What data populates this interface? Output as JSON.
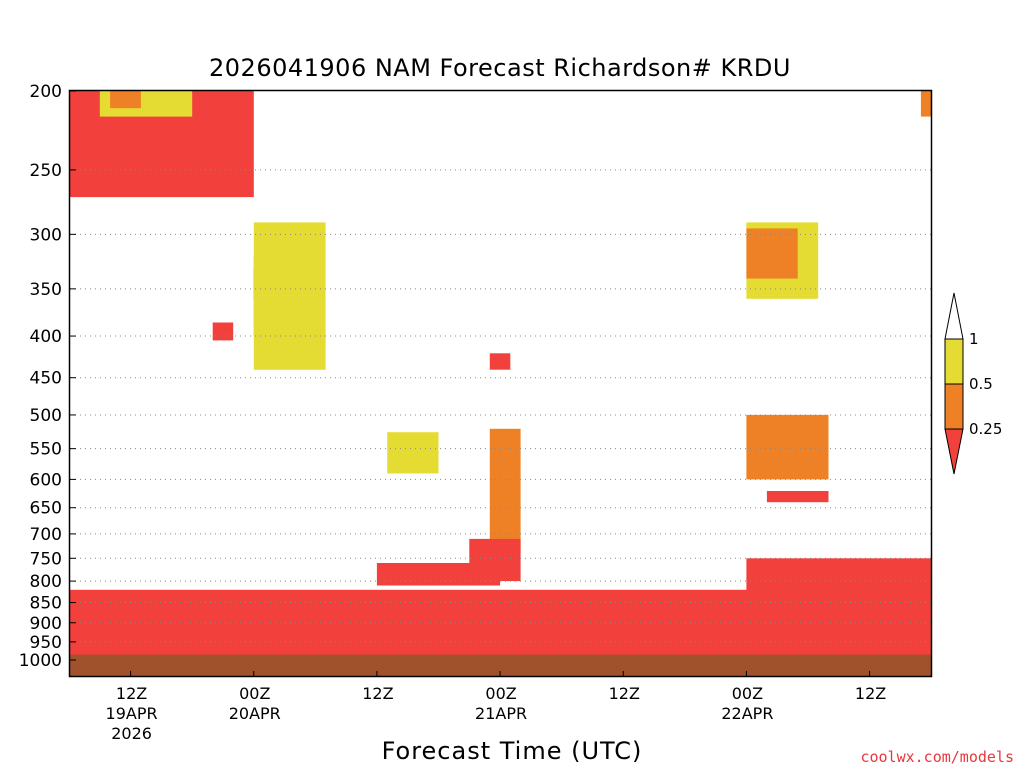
{
  "title": "2026041906 NAM Forecast Richardson# KRDU",
  "x_axis_title": "Forecast Time (UTC)",
  "credit": "coolwx.com/models",
  "credit_color": "#e8383d",
  "colors": {
    "red": "#f2403c",
    "orange": "#ee8125",
    "yellow": "#e4dc33",
    "ground": "#a0522d",
    "gridline": "#888888"
  },
  "y_ticks": [
    "200",
    "250",
    "300",
    "350",
    "400",
    "450",
    "500",
    "550",
    "600",
    "650",
    "700",
    "750",
    "800",
    "850",
    "900",
    "950",
    "1000"
  ],
  "x_ticks": [
    {
      "label": "12Z",
      "date": "19APR",
      "year": "2026"
    },
    {
      "label": "00Z",
      "date": "20APR",
      "year": ""
    },
    {
      "label": "12Z",
      "date": "",
      "year": ""
    },
    {
      "label": "00Z",
      "date": "21APR",
      "year": ""
    },
    {
      "label": "12Z",
      "date": "",
      "year": ""
    },
    {
      "label": "00Z",
      "date": "22APR",
      "year": ""
    },
    {
      "label": "12Z",
      "date": "",
      "year": ""
    }
  ],
  "legend": {
    "labels": [
      "1",
      "0.5",
      "0.25"
    ]
  },
  "chart_data": {
    "type": "heatmap",
    "title": "2026041906 NAM Forecast Richardson# KRDU",
    "xlabel": "Forecast Time (UTC)",
    "ylabel": "",
    "y_scale": "log-pressure",
    "ylim_hPa": [
      1000,
      200
    ],
    "x_start": "2026-04-19 06Z",
    "x_end": "2026-04-22 18Z",
    "grid": "dotted horizontal lines",
    "legend_position": "right",
    "color_bins": [
      {
        "range": "0.5-1",
        "color": "#e4dc33"
      },
      {
        "range": "0.25-0.5",
        "color": "#ee8125"
      },
      {
        "range": "<0.25",
        "color": "#f2403c"
      }
    ],
    "regions": [
      {
        "time_start": "2026-04-19 06Z",
        "time_end": "2026-04-20 00Z",
        "p_top": 200,
        "p_bottom": 270,
        "bin": "<0.25"
      },
      {
        "time_start": "2026-04-19 09Z",
        "time_end": "2026-04-19 18Z",
        "p_top": 200,
        "p_bottom": 215,
        "bin": "0.5-1"
      },
      {
        "time_start": "2026-04-19 10Z",
        "time_end": "2026-04-19 13Z",
        "p_top": 200,
        "p_bottom": 210,
        "bin": "0.25-0.5"
      },
      {
        "time_start": "2026-04-20 00Z",
        "time_end": "2026-04-20 03Z",
        "p_top": 330,
        "p_bottom": 360,
        "bin": "<0.25"
      },
      {
        "time_start": "2026-04-20 00Z",
        "time_end": "2026-04-20 04Z",
        "p_top": 320,
        "p_bottom": 400,
        "bin": "0.25-0.5"
      },
      {
        "time_start": "2026-04-20 00Z",
        "time_end": "2026-04-20 07Z",
        "p_top": 290,
        "p_bottom": 440,
        "bin": "0.5-1"
      },
      {
        "time_start": "2026-04-19 20Z",
        "time_end": "2026-04-19 22Z",
        "p_top": 385,
        "p_bottom": 405,
        "bin": "<0.25"
      },
      {
        "time_start": "2026-04-20 15Z",
        "time_end": "2026-04-20 18Z",
        "p_top": 535,
        "p_bottom": 575,
        "bin": "0.25-0.5"
      },
      {
        "time_start": "2026-04-20 13Z",
        "time_end": "2026-04-20 18Z",
        "p_top": 525,
        "p_bottom": 590,
        "bin": "0.5-1"
      },
      {
        "time_start": "2026-04-20 23Z",
        "time_end": "2026-04-21 01Z",
        "p_top": 420,
        "p_bottom": 440,
        "bin": "<0.25"
      },
      {
        "time_start": "2026-04-20 23Z",
        "time_end": "2026-04-21 02Z",
        "p_top": 520,
        "p_bottom": 740,
        "bin": "0.25-0.5"
      },
      {
        "time_start": "2026-04-20 21Z",
        "time_end": "2026-04-21 02Z",
        "p_top": 710,
        "p_bottom": 800,
        "bin": "<0.25"
      },
      {
        "time_start": "2026-04-20 12Z",
        "time_end": "2026-04-21 00Z",
        "p_top": 760,
        "p_bottom": 810,
        "bin": "<0.25"
      },
      {
        "time_start": "2026-04-22 00Z",
        "time_end": "2026-04-22 07Z",
        "p_top": 290,
        "p_bottom": 360,
        "bin": "0.5-1"
      },
      {
        "time_start": "2026-04-22 00Z",
        "time_end": "2026-04-22 05Z",
        "p_top": 295,
        "p_bottom": 340,
        "bin": "0.25-0.5"
      },
      {
        "time_start": "2026-04-22 00Z",
        "time_end": "2026-04-22 08Z",
        "p_top": 500,
        "p_bottom": 600,
        "bin": "0.25-0.5"
      },
      {
        "time_start": "2026-04-22 02Z",
        "time_end": "2026-04-22 08Z",
        "p_top": 620,
        "p_bottom": 640,
        "bin": "<0.25"
      },
      {
        "time_start": "2026-04-22 00Z",
        "time_end": "2026-04-22 18Z",
        "p_top": 750,
        "p_bottom": 1000,
        "bin": "<0.25"
      },
      {
        "time_start": "2026-04-19 06Z",
        "time_end": "2026-04-22 18Z",
        "p_top": 820,
        "p_bottom": 1000,
        "bin": "<0.25"
      },
      {
        "time_start": "2026-04-22 17Z",
        "time_end": "2026-04-22 18Z",
        "p_top": 200,
        "p_bottom": 215,
        "bin": "0.25-0.5"
      }
    ],
    "surface_pressure_hPa": 985
  }
}
